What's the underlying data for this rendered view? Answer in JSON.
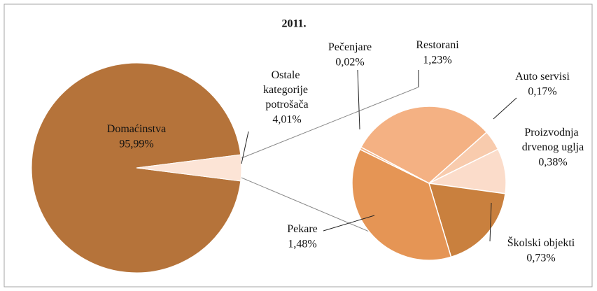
{
  "chart_data": {
    "type": "pie-of-pie",
    "title": "2011.",
    "categories": [
      "Domaćinstva",
      "Ostale kategorije potrošača"
    ],
    "values": [
      95.99,
      4.01
    ],
    "value_labels": [
      "95,99%",
      "4,01%"
    ],
    "colors": [
      "#b5733a",
      "#fce4d6"
    ],
    "sub": {
      "categories": [
        "Restorani",
        "Auto servisi",
        "Proizvodnja drvenog uglja",
        "Školski objekti",
        "Pekare",
        "Pečenjare"
      ],
      "values": [
        1.23,
        0.17,
        0.38,
        0.73,
        1.48,
        0.02
      ],
      "value_labels": [
        "1,23%",
        "0,17%",
        "0,38%",
        "0,73%",
        "1,48%",
        "0,02%"
      ],
      "colors": [
        "#f4b183",
        "#f8cbad",
        "#fbdcca",
        "#c9803e",
        "#e59555",
        "#f4b183"
      ]
    }
  }
}
